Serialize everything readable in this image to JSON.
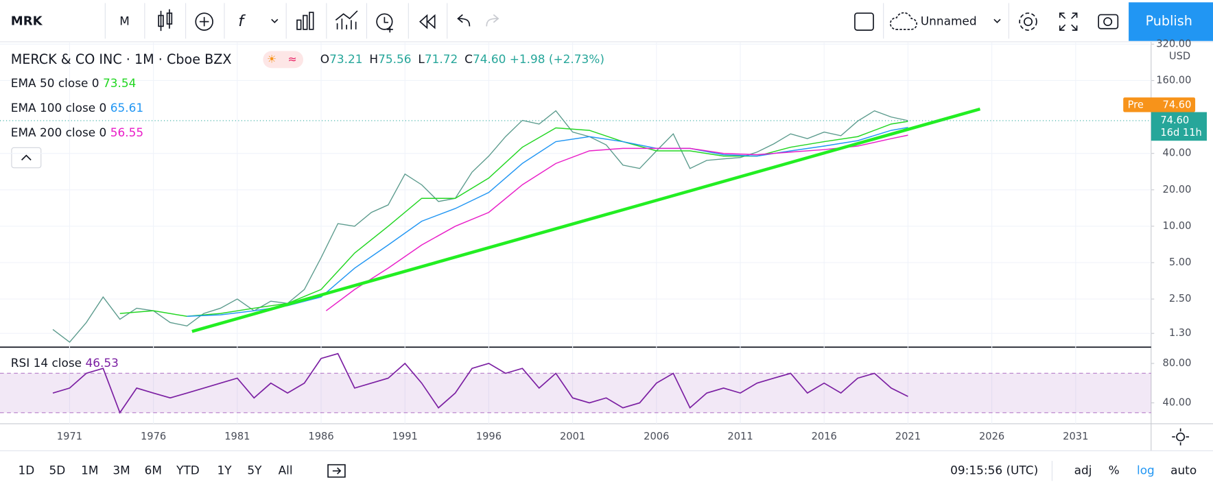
{
  "toolbar": {
    "symbol": "MRK",
    "interval": "M",
    "layout_name": "Unnamed",
    "publish": "Publish"
  },
  "legend": {
    "title": "MERCK & CO INC · 1M · Cboe BZX",
    "ohlc": [
      {
        "label": "O",
        "value": "73.21"
      },
      {
        "label": "H",
        "value": "75.56"
      },
      {
        "label": "L",
        "value": "71.72"
      },
      {
        "label": "C",
        "value": "74.60"
      }
    ],
    "change": "+1.98 (+2.73%)"
  },
  "indicators": [
    {
      "name": "EMA 50 close 0",
      "value": 73.54,
      "color": "#22d622"
    },
    {
      "name": "EMA 100 close 0",
      "value": 65.61,
      "color": "#2196f3"
    },
    {
      "name": "EMA 200 close 0",
      "value": 56.55,
      "color": "#e91ec8"
    }
  ],
  "price_scale": {
    "currency": "USD",
    "pre_label": "Pre",
    "pre_price": "74.60",
    "last_price": "74.60",
    "countdown": "16d 11h"
  },
  "chart_data": {
    "type": "line",
    "log_scale": true,
    "xlim": [
      1966.85,
      2035.5
    ],
    "ylim": [
      1,
      330
    ],
    "xticks": [
      1971,
      1976,
      1981,
      1986,
      1991,
      1996,
      2001,
      2006,
      2011,
      2016,
      2021,
      2026,
      2031
    ],
    "yticks": [
      {
        "value": 1.3,
        "label": "1.30"
      },
      {
        "value": 2.5,
        "label": "2.50"
      },
      {
        "value": 5,
        "label": "5.00"
      },
      {
        "value": 10,
        "label": "10.00"
      },
      {
        "value": 20,
        "label": "20.00"
      },
      {
        "value": 40,
        "label": "40.00"
      },
      {
        "value": 160,
        "label": "160.00"
      },
      {
        "value": 320,
        "label": "320.00"
      }
    ],
    "series": [
      {
        "color": "#5a9a8c",
        "x": [
          1970,
          1971,
          1972,
          1973,
          1974,
          1975,
          1976,
          1977,
          1978,
          1979,
          1980,
          1981,
          1982,
          1983,
          1984,
          1985,
          1986,
          1987,
          1988,
          1989,
          1990,
          1991,
          1992,
          1993,
          1994,
          1995,
          1996,
          1997,
          1998,
          1999,
          2000,
          2001,
          2002,
          2003,
          2004,
          2005,
          2006,
          2007,
          2008,
          2009,
          2010,
          2011,
          2012,
          2013,
          2014,
          2015,
          2016,
          2017,
          2018,
          2019,
          2020,
          2021
        ],
        "values": [
          1.4,
          1.1,
          1.6,
          2.6,
          1.7,
          2.1,
          2.0,
          1.6,
          1.5,
          1.9,
          2.1,
          2.5,
          2.0,
          2.4,
          2.3,
          3.0,
          5.5,
          10.5,
          10,
          13,
          15,
          27,
          22,
          16,
          17,
          28,
          38,
          55,
          75,
          70,
          90,
          60,
          55,
          47,
          32,
          30,
          42,
          58,
          30,
          35,
          36,
          37,
          41,
          48,
          58,
          53,
          60,
          56,
          74,
          90,
          80,
          74.6
        ]
      },
      {
        "color": "#22d622",
        "x": [
          1974,
          1976,
          1978,
          1980,
          1982,
          1984,
          1986,
          1988,
          1990,
          1992,
          1994,
          1996,
          1998,
          2000,
          2002,
          2004,
          2006,
          2008,
          2010,
          2012,
          2014,
          2016,
          2018,
          2020,
          2021
        ],
        "values": [
          1.9,
          2.0,
          1.8,
          1.9,
          2.1,
          2.3,
          3.0,
          6,
          10,
          17,
          17,
          25,
          45,
          65,
          62,
          50,
          42,
          42,
          38,
          38,
          45,
          50,
          55,
          70,
          73.54
        ]
      },
      {
        "color": "#2196f3",
        "x": [
          1978,
          1980,
          1982,
          1984,
          1986,
          1988,
          1990,
          1992,
          1994,
          1996,
          1998,
          2000,
          2002,
          2004,
          2006,
          2008,
          2010,
          2012,
          2014,
          2016,
          2018,
          2020,
          2021
        ],
        "values": [
          1.8,
          1.85,
          2.0,
          2.2,
          2.6,
          4.5,
          7,
          11,
          14,
          19,
          33,
          50,
          55,
          50,
          44,
          44,
          39,
          38,
          42,
          46,
          51,
          62,
          65.61
        ]
      },
      {
        "color": "#e91ec8",
        "x": [
          1986.3,
          1988,
          1990,
          1992,
          1994,
          1996,
          1998,
          2000,
          2002,
          2004,
          2006,
          2008,
          2010,
          2012,
          2014,
          2016,
          2018,
          2020,
          2021
        ],
        "values": [
          2.0,
          3.0,
          4.5,
          7,
          10,
          13,
          22,
          33,
          42,
          44,
          44,
          44,
          40,
          39,
          41,
          43,
          46,
          53,
          56.55
        ]
      }
    ],
    "trend_line": {
      "color": "#22ee22",
      "x": [
        1978.3,
        2025.3
      ],
      "values": [
        1.35,
        93
      ]
    }
  },
  "rsi": {
    "name": "RSI 14 close",
    "value": 46.53,
    "color": "#7b1fa2",
    "ylim": [
      19.6,
      95.7
    ],
    "yticks": [
      {
        "value": 40,
        "label": "40.00"
      },
      {
        "value": 80,
        "label": "80.00"
      }
    ],
    "band": [
      30,
      70
    ],
    "x": [
      1970,
      1971,
      1972,
      1973,
      1974,
      1975,
      1976,
      1977,
      1978,
      1979,
      1980,
      1981,
      1982,
      1983,
      1984,
      1985,
      1986,
      1987,
      1988,
      1989,
      1990,
      1991,
      1992,
      1993,
      1994,
      1995,
      1996,
      1997,
      1998,
      1999,
      2000,
      2001,
      2002,
      2003,
      2004,
      2005,
      2006,
      2007,
      2008,
      2009,
      2010,
      2011,
      2012,
      2013,
      2014,
      2015,
      2016,
      2017,
      2018,
      2019,
      2020,
      2021
    ],
    "values": [
      50,
      55,
      70,
      75,
      30,
      55,
      50,
      45,
      50,
      55,
      60,
      65,
      45,
      60,
      50,
      60,
      85,
      90,
      55,
      60,
      65,
      80,
      60,
      35,
      50,
      75,
      80,
      70,
      75,
      55,
      70,
      45,
      40,
      45,
      35,
      40,
      60,
      70,
      35,
      50,
      55,
      50,
      60,
      65,
      70,
      50,
      60,
      50,
      65,
      70,
      55,
      46.53
    ]
  },
  "bottom_bar": {
    "ranges": [
      "1D",
      "5D",
      "1M",
      "3M",
      "6M",
      "YTD",
      "1Y",
      "5Y",
      "All"
    ],
    "clock": "09:15:56 (UTC)",
    "options": [
      "adj",
      "%",
      "log",
      "auto"
    ]
  }
}
